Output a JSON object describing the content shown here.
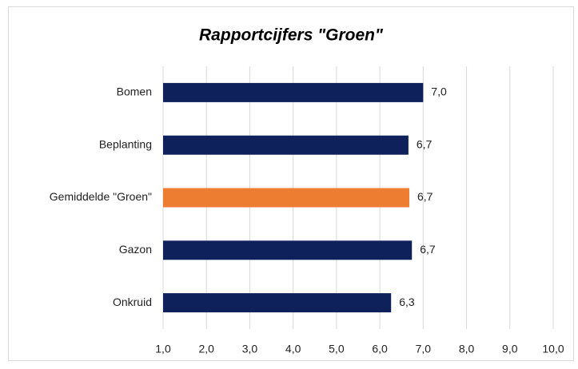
{
  "chart_data": {
    "type": "barh",
    "title": "Rapportcijfers \"Groen\"",
    "categories": [
      "Bomen",
      "Beplanting",
      "Gemiddelde \"Groen\"",
      "Gazon",
      "Onkruid"
    ],
    "values": [
      7.0,
      6.66,
      6.68,
      6.74,
      6.26
    ],
    "value_labels": [
      "7,0",
      "6,7",
      "6,7",
      "6,7",
      "6,3"
    ],
    "colors": [
      "#0e215b",
      "#0e215b",
      "#ed7d31",
      "#0e215b",
      "#0e215b"
    ],
    "xlim": [
      1,
      10
    ],
    "xticks": [
      {
        "value": 1,
        "label": "1,0"
      },
      {
        "value": 2,
        "label": "2,0"
      },
      {
        "value": 3,
        "label": "3,0"
      },
      {
        "value": 4,
        "label": "4,0"
      },
      {
        "value": 5,
        "label": "5,0"
      },
      {
        "value": 6,
        "label": "6,0"
      },
      {
        "value": 7,
        "label": "7,0"
      },
      {
        "value": 8,
        "label": "8,0"
      },
      {
        "value": 9,
        "label": "9,0"
      },
      {
        "value": 10,
        "label": "10,0"
      }
    ],
    "grid": true
  }
}
